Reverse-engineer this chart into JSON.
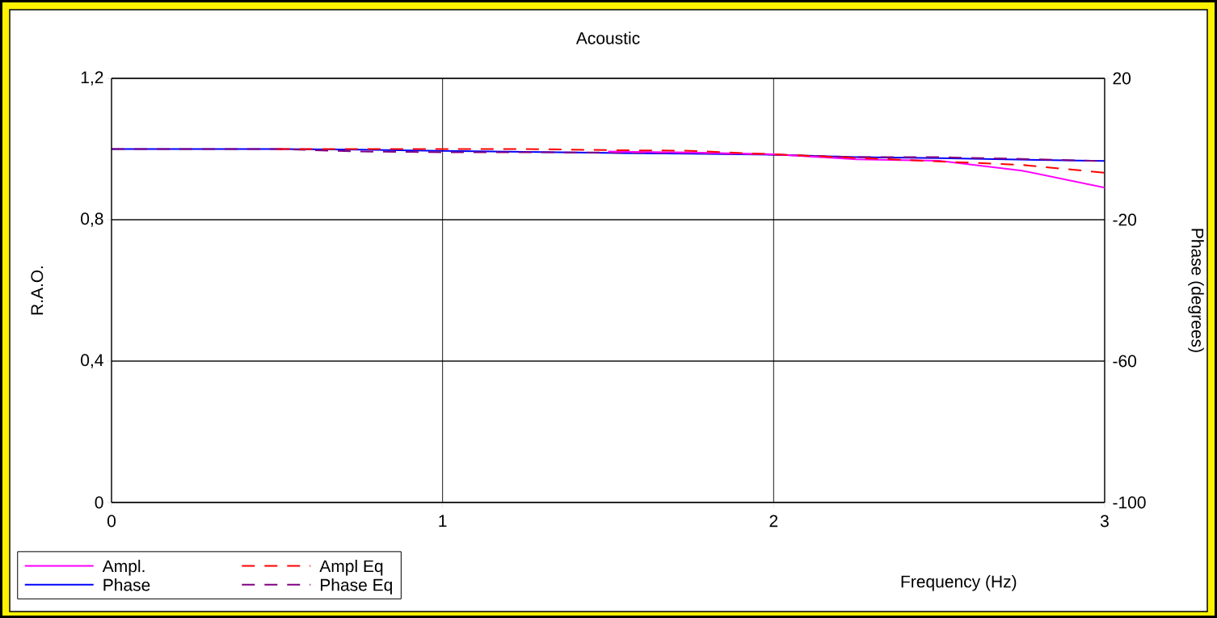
{
  "chart_data": {
    "type": "line",
    "title": "Acoustic",
    "xlabel": "Frequency (Hz)",
    "ylabel": "R.A.O.",
    "y2label": "Phase (degrees)",
    "x": [
      0,
      0.25,
      0.5,
      0.75,
      1,
      1.25,
      1.5,
      1.75,
      2,
      2.25,
      2.5,
      2.75,
      3
    ],
    "series": [
      {
        "name": "Ampl.",
        "color": "#ff00ff",
        "line_style": "solid",
        "values": [
          null,
          null,
          null,
          null,
          null,
          null,
          0.993,
          0.99,
          0.985,
          0.971,
          0.967,
          0.939,
          0.891
        ]
      },
      {
        "name": "Phase",
        "color": "#0000ff",
        "axis": "y2",
        "line_style": "solid",
        "values": [
          0,
          0,
          0,
          -0.2,
          -0.5,
          -0.8,
          -1.1,
          -1.3,
          -1.6,
          -2.3,
          -2.6,
          -3.0,
          -3.4
        ]
      },
      {
        "name": "Ampl Eq",
        "color": "#ff0000",
        "line_style": "dashed",
        "values": [
          null,
          null,
          1.0,
          1.0,
          1.0,
          1.0,
          0.997,
          0.995,
          0.985,
          0.975,
          0.965,
          0.955,
          0.933
        ]
      },
      {
        "name": "Phase Eq",
        "color": "#800080",
        "axis": "y2",
        "line_style": "dashed",
        "values": [
          0,
          0,
          0,
          -0.7,
          -0.9,
          -0.9,
          -1.0,
          -1.1,
          -1.6,
          -2.3,
          -2.3,
          -2.8,
          -3.4
        ]
      }
    ],
    "xlim": [
      0,
      3
    ],
    "xticks": [
      0,
      1,
      2,
      3
    ],
    "ylim": [
      0,
      1.2
    ],
    "yticks": [
      0,
      {
        "value": 0.4,
        "label": "0,4"
      },
      {
        "value": 0.8,
        "label": "0,8"
      },
      {
        "value": 1.2,
        "label": "1,2"
      }
    ],
    "y2lim": [
      -100,
      20
    ],
    "y2ticks": [
      -100,
      -60,
      -20,
      20
    ],
    "grid": true,
    "legend": "bottom left"
  }
}
